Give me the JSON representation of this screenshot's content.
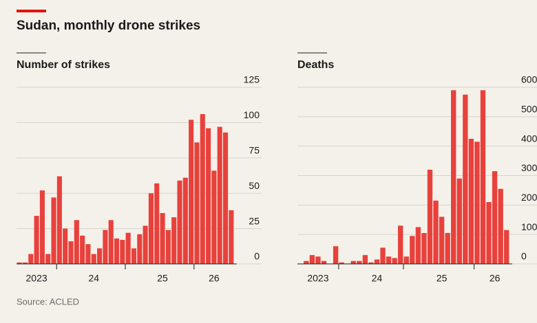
{
  "title": "Sudan, monthly drone strikes",
  "source": "Source: ACLED",
  "chart_data": [
    {
      "type": "bar",
      "title": "Number of strikes",
      "color": "#e8413c",
      "grid": true,
      "ylim": [
        0,
        125
      ],
      "yticks": [
        0,
        25,
        50,
        75,
        100,
        125
      ],
      "categories": [
        null,
        null,
        null,
        "2023",
        null,
        null,
        null,
        null,
        null,
        null,
        null,
        null,
        null,
        "24",
        null,
        null,
        null,
        null,
        null,
        null,
        null,
        null,
        null,
        null,
        null,
        "25",
        null,
        null,
        null,
        null,
        null,
        null,
        null,
        null,
        "26",
        null,
        null,
        null
      ],
      "values": [
        1,
        1,
        7,
        34,
        52,
        7,
        47,
        62,
        25,
        16,
        31,
        20,
        14,
        7,
        11,
        24,
        31,
        18,
        17,
        22,
        11,
        21,
        27,
        50,
        57,
        36,
        24,
        33,
        59,
        61,
        102,
        86,
        106,
        96,
        66,
        97,
        93,
        38
      ]
    },
    {
      "type": "bar",
      "title": "Deaths",
      "color": "#e8413c",
      "grid": true,
      "ylim": [
        0,
        600
      ],
      "yticks": [
        0,
        100,
        200,
        300,
        400,
        500,
        600
      ],
      "categories": [
        null,
        null,
        null,
        "2023",
        null,
        null,
        null,
        null,
        null,
        null,
        null,
        null,
        null,
        "24",
        null,
        null,
        null,
        null,
        null,
        null,
        null,
        null,
        null,
        null,
        "25",
        null,
        null,
        null,
        null,
        null,
        null,
        null,
        null,
        "26",
        null,
        null
      ],
      "values": [
        0,
        10,
        30,
        25,
        10,
        0,
        60,
        5,
        0,
        10,
        10,
        30,
        5,
        15,
        55,
        25,
        20,
        130,
        25,
        95,
        125,
        105,
        320,
        215,
        160,
        105,
        590,
        290,
        575,
        425,
        415,
        590,
        210,
        315,
        255,
        115
      ]
    }
  ]
}
